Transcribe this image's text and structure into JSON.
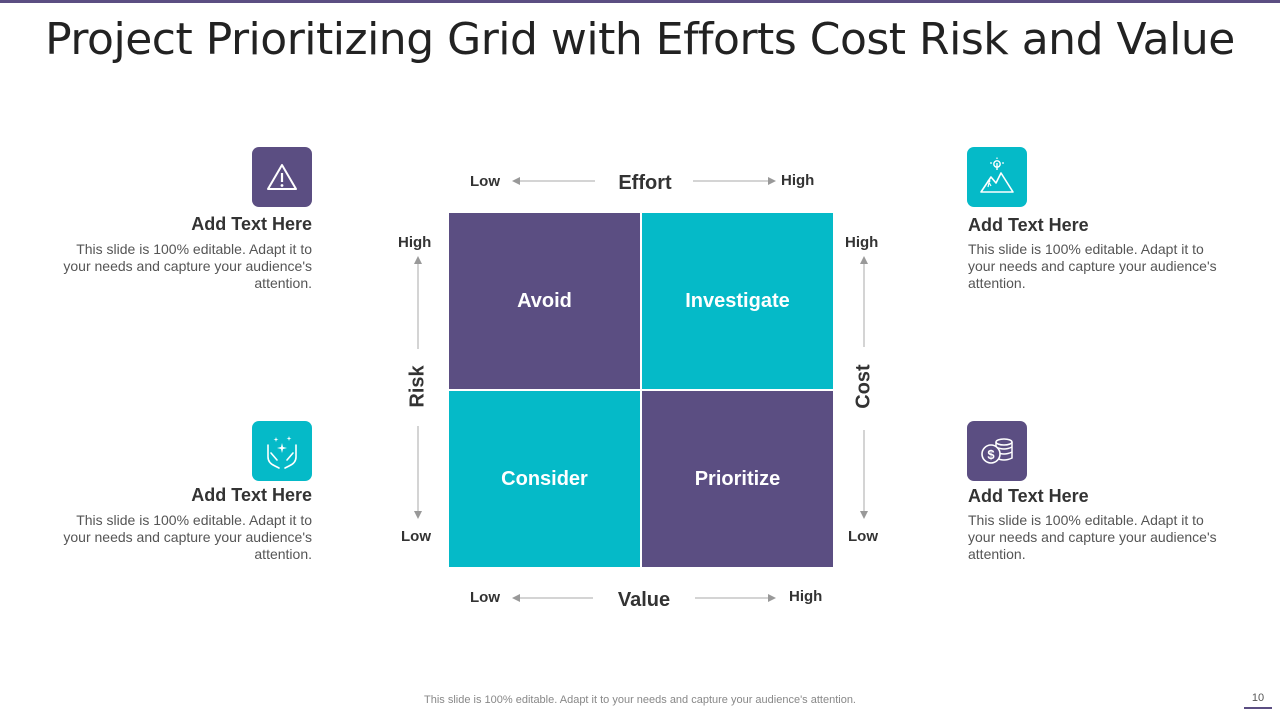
{
  "title": "Project Prioritizing Grid with Efforts Cost Risk and Value",
  "colors": {
    "purple": "#5b4e82",
    "teal": "#05bac8"
  },
  "left_items": [
    {
      "icon": "warning-icon",
      "heading": "Add Text Here",
      "body": "This slide is 100% editable. Adapt it to your needs and capture your audience's attention."
    },
    {
      "icon": "hands-sparkle-icon",
      "heading": "Add Text Here",
      "body": "This slide is 100% editable. Adapt it to your needs and capture your audience's attention."
    }
  ],
  "right_items": [
    {
      "icon": "mountain-goal-icon",
      "heading": "Add Text Here",
      "body": "This slide is 100% editable. Adapt it to your needs and capture your audience's attention."
    },
    {
      "icon": "coins-icon",
      "heading": "Add Text Here",
      "body": "This slide is 100% editable. Adapt it to your needs and capture your audience's attention."
    }
  ],
  "grid": {
    "cells": [
      "Avoid",
      "Investigate",
      "Consider",
      "Prioritize"
    ],
    "effort": {
      "name": "Effort",
      "low": "Low",
      "high": "High"
    },
    "value": {
      "name": "Value",
      "low": "Low",
      "high": "High"
    },
    "risk": {
      "name": "Risk",
      "low": "Low",
      "high": "High"
    },
    "cost": {
      "name": "Cost",
      "low": "Low",
      "high": "High"
    }
  },
  "footer": "This slide is 100% editable. Adapt it to your needs and capture your audience's attention.",
  "page_number": "10"
}
